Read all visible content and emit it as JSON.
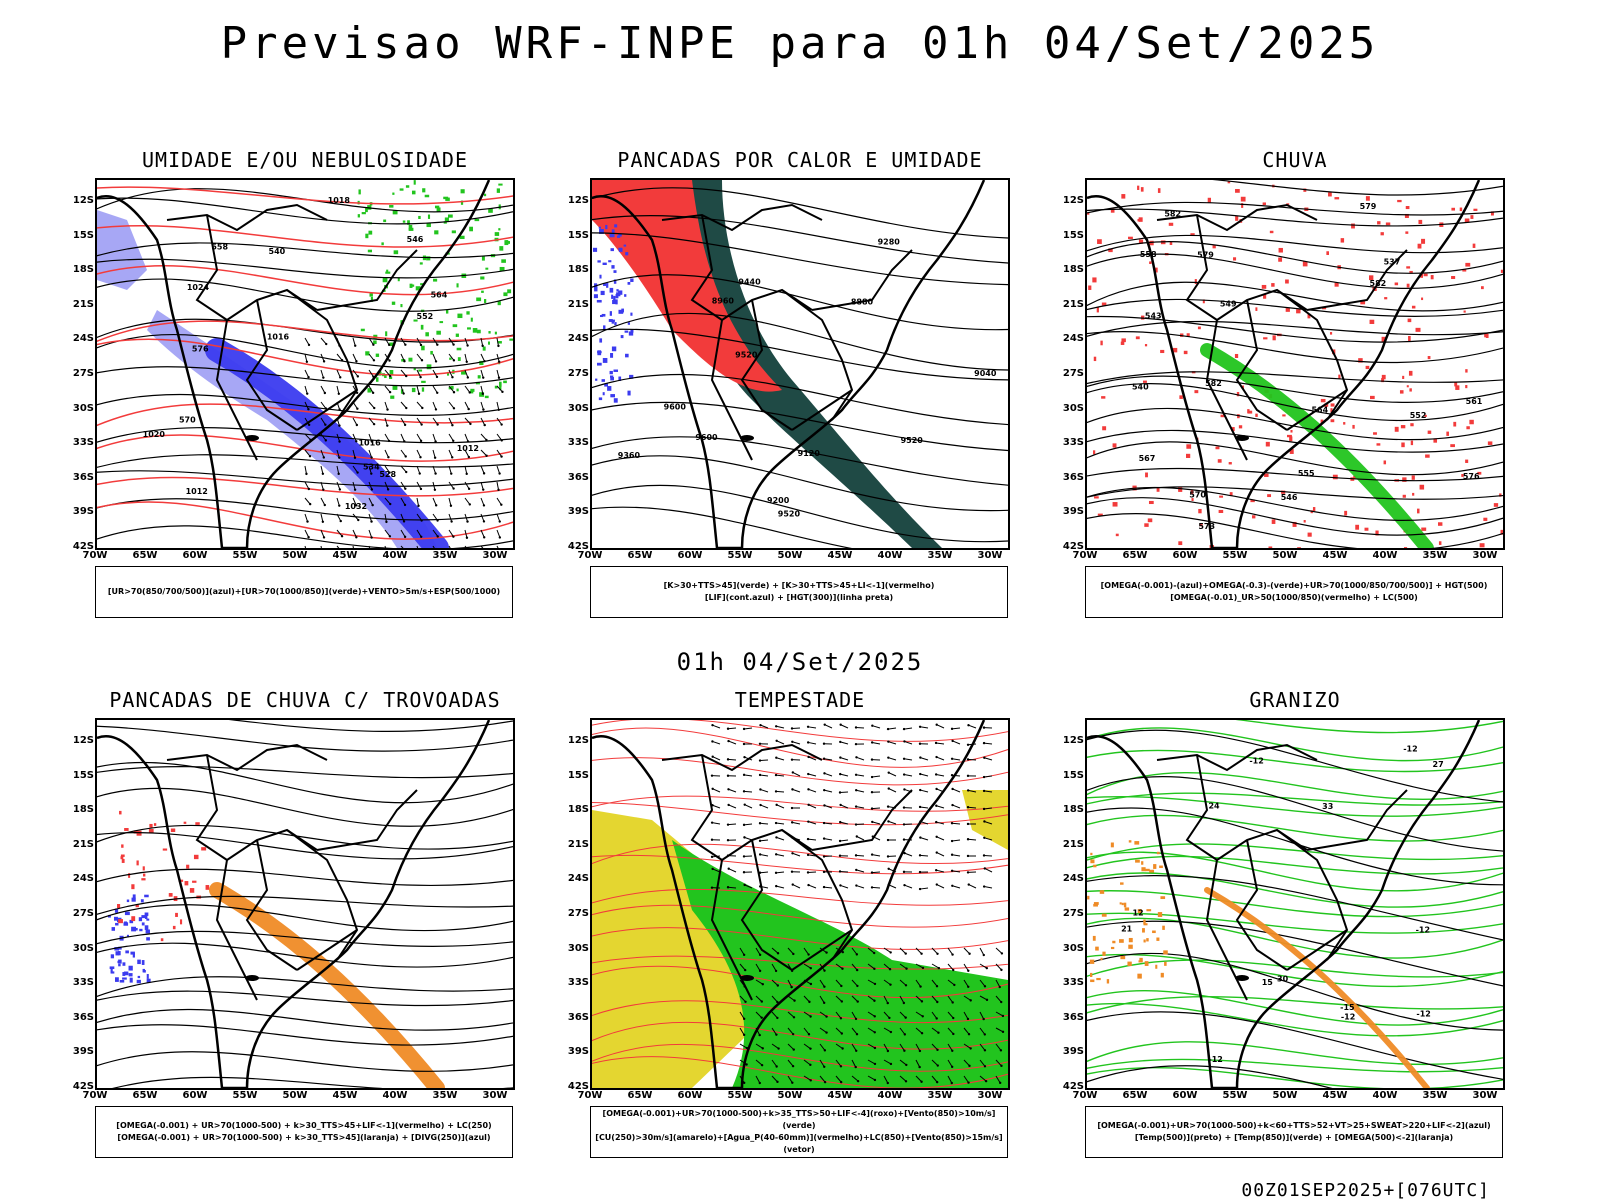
{
  "header": {
    "title": "Previsao WRF-INPE  para 01h 04/Set/2025"
  },
  "mid_time": "01h 04/Set/2025",
  "footer": "00Z01SEP2025+[076UTC]",
  "axes": {
    "lat_labels": [
      "12S",
      "15S",
      "18S",
      "21S",
      "24S",
      "27S",
      "30S",
      "33S",
      "36S",
      "39S",
      "42S"
    ],
    "lon_labels": [
      "70W",
      "65W",
      "60W",
      "55W",
      "50W",
      "45W",
      "40W",
      "35W",
      "30W"
    ]
  },
  "colors": {
    "red": "#f23b3b",
    "green": "#22c41e",
    "blue": "#3b3bef",
    "lightblue": "#a7a7f5",
    "orange": "#ef8b26",
    "yellow": "#e4d630",
    "darkteal": "#1f4a45",
    "black": "#000000"
  },
  "panels": [
    {
      "title": "UMIDADE E/OU NEBULOSIDADE",
      "legend": [
        "[UR>70(850/700/500)](azul)+[UR>70(1000/850)](verde)+VENTO>5m/s+ESP(500/1000)"
      ],
      "contour_labels": [
        "1012",
        "1016",
        "1020",
        "1024",
        "1032",
        "1012",
        "1016",
        "1018",
        "576",
        "570",
        "564",
        "558",
        "552",
        "546",
        "540",
        "534",
        "528"
      ]
    },
    {
      "title": "PANCADAS POR CALOR E UMIDADE",
      "legend": [
        "[K>30+TTS>45](verde) + [K>30+TTS>45+LI<-1](vermelho)",
        "[LIF](cont.azul) + [HGT(300)](linha preta)"
      ],
      "contour_labels": [
        "9600",
        "9520",
        "9360",
        "9280",
        "9200",
        "9120",
        "9040",
        "8960",
        "8880",
        "9440",
        "9520",
        "9520",
        "9600"
      ]
    },
    {
      "title": "CHUVA",
      "legend": [
        "[OMEGA(-0.001)-(azul)+OMEGA(-0.3)-(verde)+UR>70(1000/850/700/500)] + HGT(500)",
        "[OMEGA(-0.01)_UR>50(1000/850)(vermelho) + LC(500)"
      ],
      "contour_labels": [
        "582",
        "579",
        "576",
        "573",
        "570",
        "567",
        "564",
        "561",
        "558",
        "555",
        "552",
        "549",
        "546",
        "543",
        "540",
        "537",
        "582",
        "582",
        "579"
      ]
    },
    {
      "title": "PANCADAS DE CHUVA C/ TROVOADAS",
      "legend": [
        "[OMEGA(-0.001) + UR>70(1000-500) + k>30_TTS>45+LIF<-1](vermelho) + LC(250)",
        "[OMEGA(-0.001) + UR>70(1000-500) + k>30_TTS>45](laranja) + [DIVG(250)](azul)"
      ],
      "contour_labels": []
    },
    {
      "title": "TEMPESTADE",
      "legend": [
        "[OMEGA(-0.001)+UR>70(1000-500)+k>35_TTS>50+LIF<-4](roxo)+[Vento(850)>10m/s](verde)",
        "[CU(250)>30m/s](amarelo)+[Agua_P(40-60mm)](vermelho)+LC(850)+[Vento(850)>15m/s](vetor)"
      ],
      "contour_labels": []
    },
    {
      "title": "GRANIZO",
      "legend": [
        "[OMEGA(-0.001)+UR>70(1000-500)+k<60+TTS>52+VT>25+SWEAT>220+LIF<-2](azul)",
        "[Temp(500)](preto) + [Temp(850)](verde) + [OMEGA(500)<-2](laranja)"
      ],
      "contour_labels": [
        "-12",
        "-15",
        "-12",
        "-12",
        "-12",
        "-12",
        "-12",
        "12",
        "15",
        "21",
        "24",
        "27",
        "30",
        "33"
      ]
    }
  ]
}
